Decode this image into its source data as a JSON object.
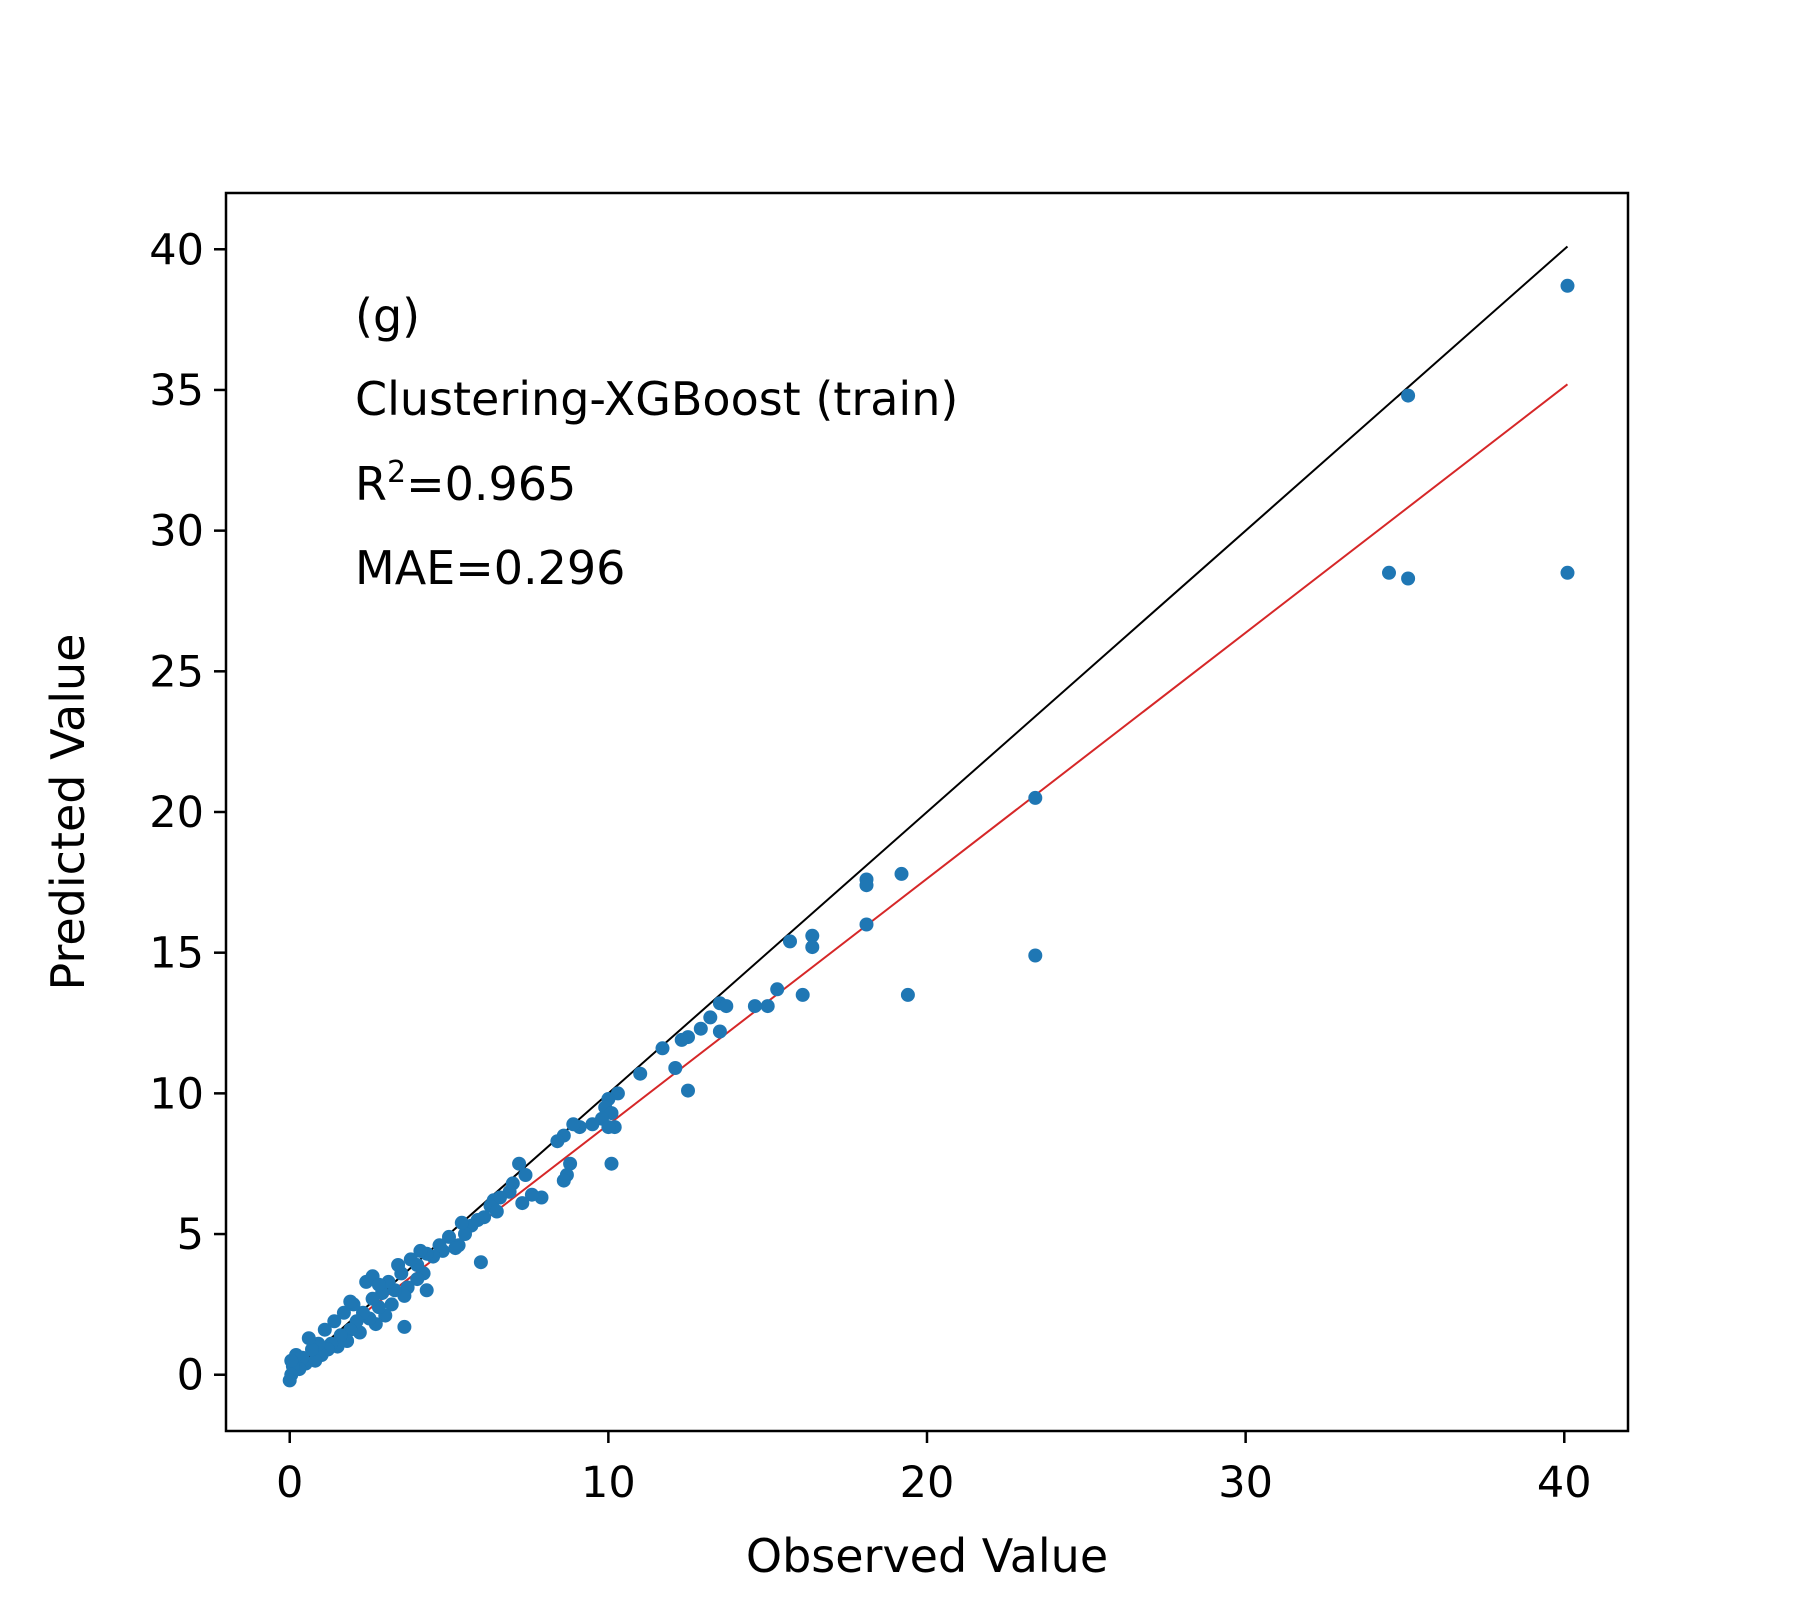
{
  "chart_data": {
    "type": "scatter",
    "xlabel": "Observed Value",
    "ylabel": "Predicted Value",
    "xlim": [
      -2,
      42
    ],
    "ylim": [
      -2,
      42
    ],
    "xticks": [
      0,
      10,
      20,
      30,
      40
    ],
    "yticks": [
      0,
      5,
      10,
      15,
      20,
      25,
      30,
      35,
      40
    ],
    "grid": false,
    "annotations": {
      "panel": "(g)",
      "model": "Clustering-XGBoost (train)",
      "r2_prefix": "R",
      "r2_sup": "2",
      "r2_value": "=0.965",
      "mae": "MAE=0.296"
    },
    "identity_line": {
      "x": [
        0,
        40.1
      ],
      "y": [
        0,
        40.1
      ],
      "color": "#000000"
    },
    "fit_line": {
      "x": [
        0,
        40.1
      ],
      "y": [
        0.15,
        35.2
      ],
      "color": "#d62728"
    },
    "point_color": "#1f77b4",
    "points": [
      [
        40.1,
        38.7
      ],
      [
        35.1,
        34.8
      ],
      [
        34.5,
        28.5
      ],
      [
        35.1,
        28.3
      ],
      [
        40.1,
        28.5
      ],
      [
        23.4,
        20.5
      ],
      [
        23.4,
        14.9
      ],
      [
        19.2,
        17.8
      ],
      [
        19.4,
        13.5
      ],
      [
        18.1,
        17.6
      ],
      [
        18.1,
        17.4
      ],
      [
        18.1,
        16.0
      ],
      [
        16.4,
        15.6
      ],
      [
        16.4,
        15.2
      ],
      [
        16.1,
        13.5
      ],
      [
        15.7,
        15.4
      ],
      [
        15.3,
        13.7
      ],
      [
        15.0,
        13.1
      ],
      [
        14.6,
        13.1
      ],
      [
        13.5,
        13.2
      ],
      [
        13.2,
        12.7
      ],
      [
        13.7,
        13.1
      ],
      [
        13.5,
        12.2
      ],
      [
        12.9,
        12.3
      ],
      [
        12.5,
        12.0
      ],
      [
        12.3,
        11.9
      ],
      [
        12.1,
        10.9
      ],
      [
        12.5,
        10.1
      ],
      [
        11.7,
        11.6
      ],
      [
        11.0,
        10.7
      ],
      [
        10.3,
        10.0
      ],
      [
        10.0,
        9.8
      ],
      [
        9.9,
        9.5
      ],
      [
        10.1,
        9.3
      ],
      [
        9.8,
        9.1
      ],
      [
        10.2,
        8.8
      ],
      [
        10.0,
        8.8
      ],
      [
        9.5,
        8.9
      ],
      [
        9.1,
        8.8
      ],
      [
        8.9,
        8.9
      ],
      [
        8.6,
        8.5
      ],
      [
        8.4,
        8.3
      ],
      [
        8.8,
        7.5
      ],
      [
        8.7,
        7.1
      ],
      [
        8.6,
        6.9
      ],
      [
        10.1,
        7.5
      ],
      [
        7.9,
        6.3
      ],
      [
        7.6,
        6.4
      ],
      [
        7.3,
        6.1
      ],
      [
        7.2,
        7.5
      ],
      [
        7.0,
        6.8
      ],
      [
        6.9,
        6.5
      ],
      [
        6.6,
        6.3
      ],
      [
        6.4,
        6.2
      ],
      [
        6.3,
        6.0
      ],
      [
        6.1,
        5.6
      ],
      [
        5.9,
        5.5
      ],
      [
        5.7,
        5.3
      ],
      [
        5.5,
        5.0
      ],
      [
        5.4,
        5.4
      ],
      [
        6.0,
        4.0
      ],
      [
        5.3,
        4.6
      ],
      [
        5.0,
        4.9
      ],
      [
        4.8,
        4.4
      ],
      [
        4.7,
        4.6
      ],
      [
        4.5,
        4.2
      ],
      [
        4.3,
        4.3
      ],
      [
        4.2,
        3.6
      ],
      [
        4.0,
        3.4
      ],
      [
        4.0,
        3.9
      ],
      [
        3.8,
        4.1
      ],
      [
        3.7,
        3.1
      ],
      [
        3.6,
        2.8
      ],
      [
        3.5,
        3.6
      ],
      [
        3.3,
        3.0
      ],
      [
        3.2,
        2.5
      ],
      [
        3.1,
        3.3
      ],
      [
        3.0,
        2.1
      ],
      [
        2.9,
        2.9
      ],
      [
        2.8,
        2.4
      ],
      [
        2.7,
        1.8
      ],
      [
        2.6,
        2.7
      ],
      [
        2.5,
        2.0
      ],
      [
        2.4,
        3.3
      ],
      [
        2.3,
        2.2
      ],
      [
        2.2,
        1.5
      ],
      [
        2.1,
        1.9
      ],
      [
        2.0,
        2.5
      ],
      [
        1.9,
        1.6
      ],
      [
        1.8,
        1.2
      ],
      [
        1.7,
        2.2
      ],
      [
        1.6,
        1.4
      ],
      [
        1.5,
        1.0
      ],
      [
        1.4,
        1.9
      ],
      [
        1.3,
        1.1
      ],
      [
        1.2,
        0.9
      ],
      [
        1.1,
        1.6
      ],
      [
        1.0,
        0.7
      ],
      [
        0.9,
        1.1
      ],
      [
        0.8,
        0.5
      ],
      [
        0.7,
        0.9
      ],
      [
        0.6,
        1.3
      ],
      [
        0.5,
        0.4
      ],
      [
        0.4,
        0.6
      ],
      [
        0.3,
        0.2
      ],
      [
        0.2,
        0.7
      ],
      [
        0.1,
        0.3
      ],
      [
        0.05,
        0.0
      ],
      [
        0.0,
        -0.2
      ],
      [
        0.05,
        0.5
      ],
      [
        3.6,
        1.7
      ],
      [
        4.3,
        3.0
      ],
      [
        5.2,
        4.5
      ],
      [
        6.5,
        5.8
      ],
      [
        7.4,
        7.1
      ],
      [
        2.6,
        3.5
      ],
      [
        3.4,
        3.9
      ],
      [
        4.1,
        4.4
      ],
      [
        1.9,
        2.6
      ],
      [
        2.8,
        3.2
      ]
    ]
  }
}
